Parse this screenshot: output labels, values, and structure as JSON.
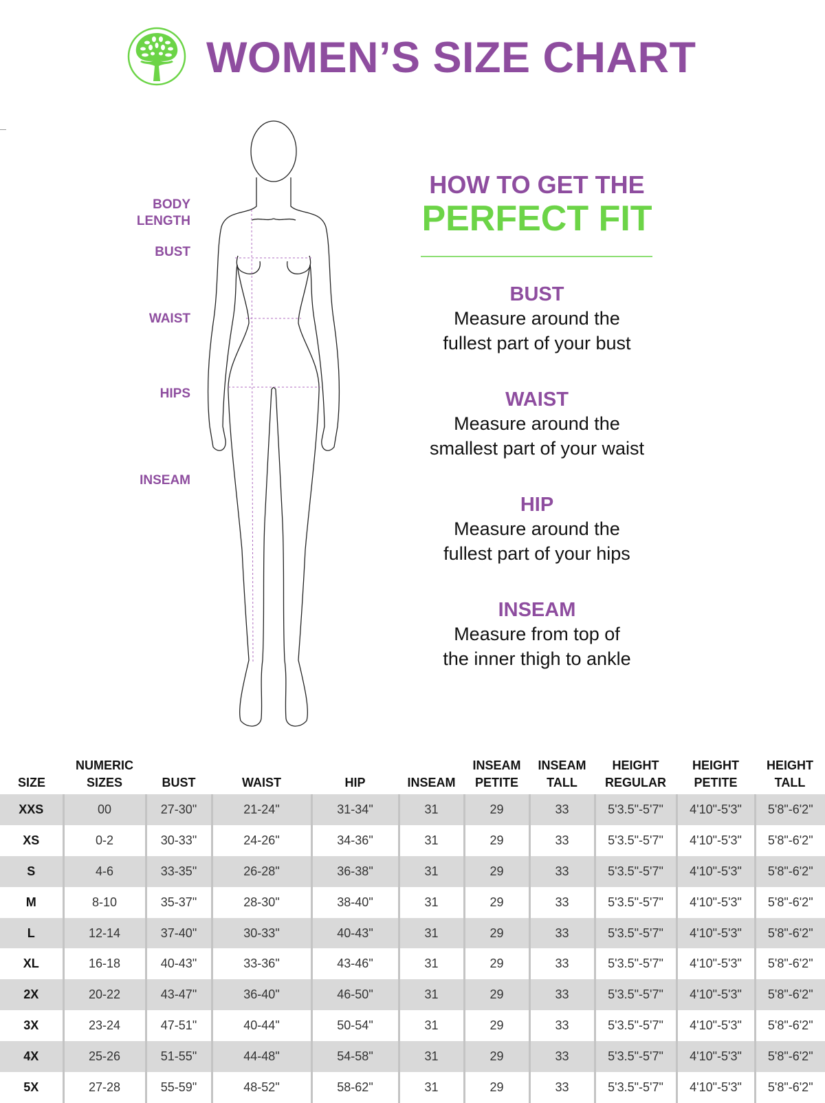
{
  "header": {
    "title": "WOMEN’S SIZE CHART",
    "logo": "tree-logo",
    "brand_color": "#8e4d9f",
    "accent_color": "#6cd447"
  },
  "figure_labels": {
    "body_length": [
      "BODY",
      "LENGTH"
    ],
    "bust": "BUST",
    "waist": "WAIST",
    "hips": "HIPS",
    "inseam": "INSEAM"
  },
  "guide": {
    "heading_line1": "HOW TO GET THE",
    "heading_line2": "PERFECT FIT",
    "items": [
      {
        "title": "BUST",
        "lines": [
          "Measure around the",
          "fullest part of your bust"
        ]
      },
      {
        "title": "WAIST",
        "lines": [
          "Measure around the",
          "smallest part of your waist"
        ]
      },
      {
        "title": "HIP",
        "lines": [
          "Measure around the",
          "fullest part of your hips"
        ]
      },
      {
        "title": "INSEAM",
        "lines": [
          "Measure from top of",
          "the inner thigh to ankle"
        ]
      }
    ]
  },
  "table": {
    "columns": [
      [
        "SIZE"
      ],
      [
        "NUMERIC",
        "SIZES"
      ],
      [
        "BUST"
      ],
      [
        "WAIST"
      ],
      [
        "HIP"
      ],
      [
        "INSEAM"
      ],
      [
        "INSEAM",
        "PETITE"
      ],
      [
        "INSEAM",
        "TALL"
      ],
      [
        "HEIGHT",
        "REGULAR"
      ],
      [
        "HEIGHT",
        "PETITE"
      ],
      [
        "HEIGHT",
        "TALL"
      ]
    ],
    "rows": [
      [
        "XXS",
        "00",
        "27-30\"",
        "21-24\"",
        "31-34\"",
        "31",
        "29",
        "33",
        "5'3.5\"-5'7\"",
        "4'10\"-5'3\"",
        "5'8\"-6'2\""
      ],
      [
        "XS",
        "0-2",
        "30-33\"",
        "24-26\"",
        "34-36\"",
        "31",
        "29",
        "33",
        "5'3.5\"-5'7\"",
        "4'10\"-5'3\"",
        "5'8\"-6'2\""
      ],
      [
        "S",
        "4-6",
        "33-35\"",
        "26-28\"",
        "36-38\"",
        "31",
        "29",
        "33",
        "5'3.5\"-5'7\"",
        "4'10\"-5'3\"",
        "5'8\"-6'2\""
      ],
      [
        "M",
        "8-10",
        "35-37\"",
        "28-30\"",
        "38-40\"",
        "31",
        "29",
        "33",
        "5'3.5\"-5'7\"",
        "4'10\"-5'3\"",
        "5'8\"-6'2\""
      ],
      [
        "L",
        "12-14",
        "37-40\"",
        "30-33\"",
        "40-43\"",
        "31",
        "29",
        "33",
        "5'3.5\"-5'7\"",
        "4'10\"-5'3\"",
        "5'8\"-6'2\""
      ],
      [
        "XL",
        "16-18",
        "40-43\"",
        "33-36\"",
        "43-46\"",
        "31",
        "29",
        "33",
        "5'3.5\"-5'7\"",
        "4'10\"-5'3\"",
        "5'8\"-6'2\""
      ],
      [
        "2X",
        "20-22",
        "43-47\"",
        "36-40\"",
        "46-50\"",
        "31",
        "29",
        "33",
        "5'3.5\"-5'7\"",
        "4'10\"-5'3\"",
        "5'8\"-6'2\""
      ],
      [
        "3X",
        "23-24",
        "47-51\"",
        "40-44\"",
        "50-54\"",
        "31",
        "29",
        "33",
        "5'3.5\"-5'7\"",
        "4'10\"-5'3\"",
        "5'8\"-6'2\""
      ],
      [
        "4X",
        "25-26",
        "51-55\"",
        "44-48\"",
        "54-58\"",
        "31",
        "29",
        "33",
        "5'3.5\"-5'7\"",
        "4'10\"-5'3\"",
        "5'8\"-6'2\""
      ],
      [
        "5X",
        "27-28",
        "55-59\"",
        "48-52\"",
        "58-62\"",
        "31",
        "29",
        "33",
        "5'3.5\"-5'7\"",
        "4'10\"-5'3\"",
        "5'8\"-6'2\""
      ]
    ]
  }
}
